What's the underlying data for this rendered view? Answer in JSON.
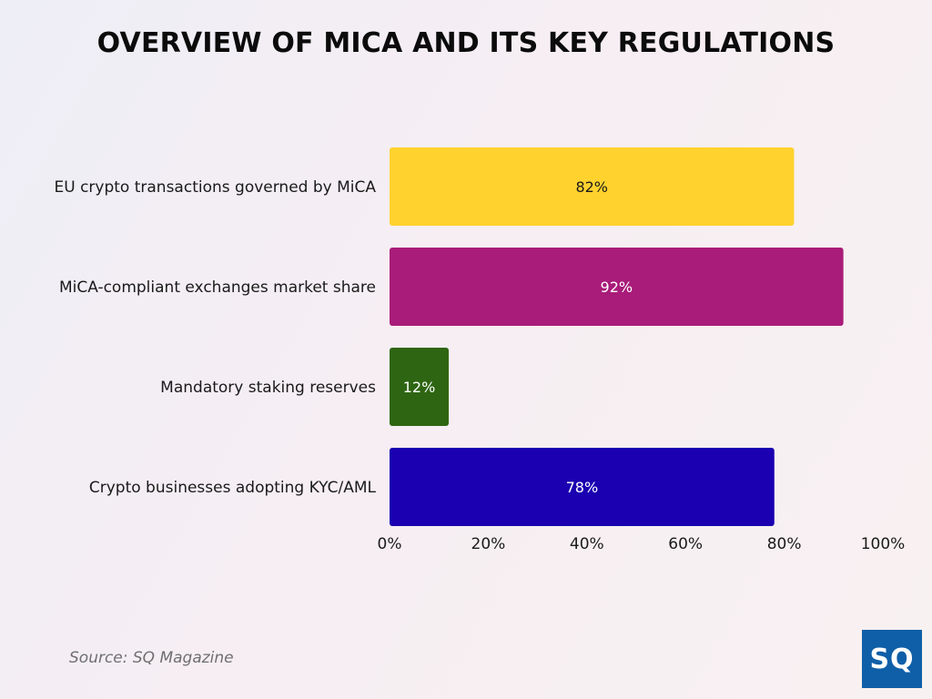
{
  "title": "OVERVIEW OF MICA AND ITS KEY REGULATIONS",
  "source": "Source: SQ Magazine",
  "logo_text": "SQ",
  "chart_data": {
    "type": "bar",
    "orientation": "horizontal",
    "title": "OVERVIEW OF MICA AND ITS KEY REGULATIONS",
    "categories": [
      "EU crypto transactions governed by MiCA",
      "MiCA-compliant exchanges market share",
      "Mandatory staking reserves",
      "Crypto businesses adopting KYC/AML"
    ],
    "values": [
      82,
      92,
      12,
      78
    ],
    "value_labels": [
      "82%",
      "92%",
      "12%",
      "78%"
    ],
    "colors": [
      "#ffd22e",
      "#a91c79",
      "#2e6512",
      "#1a00b0"
    ],
    "label_colors": [
      "#1a1a1a",
      "#ffffff",
      "#ffffff",
      "#ffffff"
    ],
    "xlim": [
      0,
      100
    ],
    "x_ticks": [
      0,
      20,
      40,
      60,
      80,
      100
    ],
    "x_tick_labels": [
      "0%",
      "20%",
      "40%",
      "60%",
      "80%",
      "100%"
    ],
    "grid": false,
    "legend": "none"
  }
}
